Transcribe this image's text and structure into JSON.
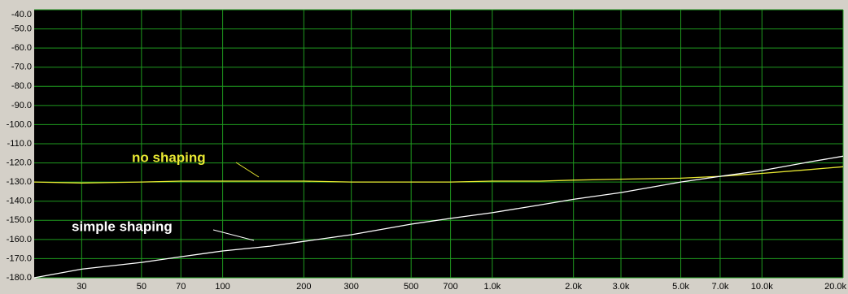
{
  "chart_data": {
    "type": "line",
    "x": [
      20,
      30,
      50,
      70,
      100,
      150,
      200,
      300,
      500,
      700,
      1000,
      1500,
      2000,
      3000,
      5000,
      7000,
      10000,
      15000,
      20000
    ],
    "series": [
      {
        "name": "no shaping",
        "color": "#e8e832",
        "values": [
          -130,
          -130.5,
          -130,
          -129.5,
          -129.5,
          -129.5,
          -129.5,
          -130,
          -130,
          -130,
          -129.5,
          -129.5,
          -129,
          -128.5,
          -128,
          -127,
          -125.5,
          -123.5,
          -122
        ]
      },
      {
        "name": "simple shaping",
        "color": "#ffffff",
        "values": [
          -180,
          -175.5,
          -172,
          -169,
          -166,
          -163.5,
          -161,
          -157.5,
          -152,
          -149,
          -146,
          -142,
          -139,
          -135.5,
          -130,
          -127,
          -124,
          -119.5,
          -116.5
        ]
      }
    ],
    "annotations": [
      "no shaping",
      "simple shaping"
    ],
    "xlim": [
      20,
      20000
    ],
    "ylim": [
      -180,
      -40
    ],
    "log_x": true,
    "grid": true,
    "grid_color": "#1f9a1f",
    "background": "#000000",
    "xticks": [
      30,
      50,
      70,
      100,
      200,
      300,
      500,
      700,
      {
        "value": 1000,
        "label": "1.0k"
      },
      {
        "value": 2000,
        "label": "2.0k"
      },
      {
        "value": 3000,
        "label": "3.0k"
      },
      {
        "value": 5000,
        "label": "5.0k"
      },
      {
        "value": 7000,
        "label": "7.0k"
      },
      {
        "value": 10000,
        "label": "10.0k"
      },
      {
        "value": 20000,
        "label": "20.0k"
      }
    ],
    "yticks": [
      {
        "value": -40,
        "label": "-40.0"
      },
      {
        "value": -50,
        "label": "-50.0"
      },
      {
        "value": -60,
        "label": "-60.0"
      },
      {
        "value": -70,
        "label": "-70.0"
      },
      {
        "value": -80,
        "label": "-80.0"
      },
      {
        "value": -90,
        "label": "-90.0"
      },
      {
        "value": -100,
        "label": "-100.0"
      },
      {
        "value": -110,
        "label": "-110.0"
      },
      {
        "value": -120,
        "label": "-120.0"
      },
      {
        "value": -130,
        "label": "-130.0"
      },
      {
        "value": -140,
        "label": "-140.0"
      },
      {
        "value": -150,
        "label": "-150.0"
      },
      {
        "value": -160,
        "label": "-160.0"
      },
      {
        "value": -170,
        "label": "-170.0"
      },
      {
        "value": -180,
        "label": "-180.0"
      }
    ]
  }
}
